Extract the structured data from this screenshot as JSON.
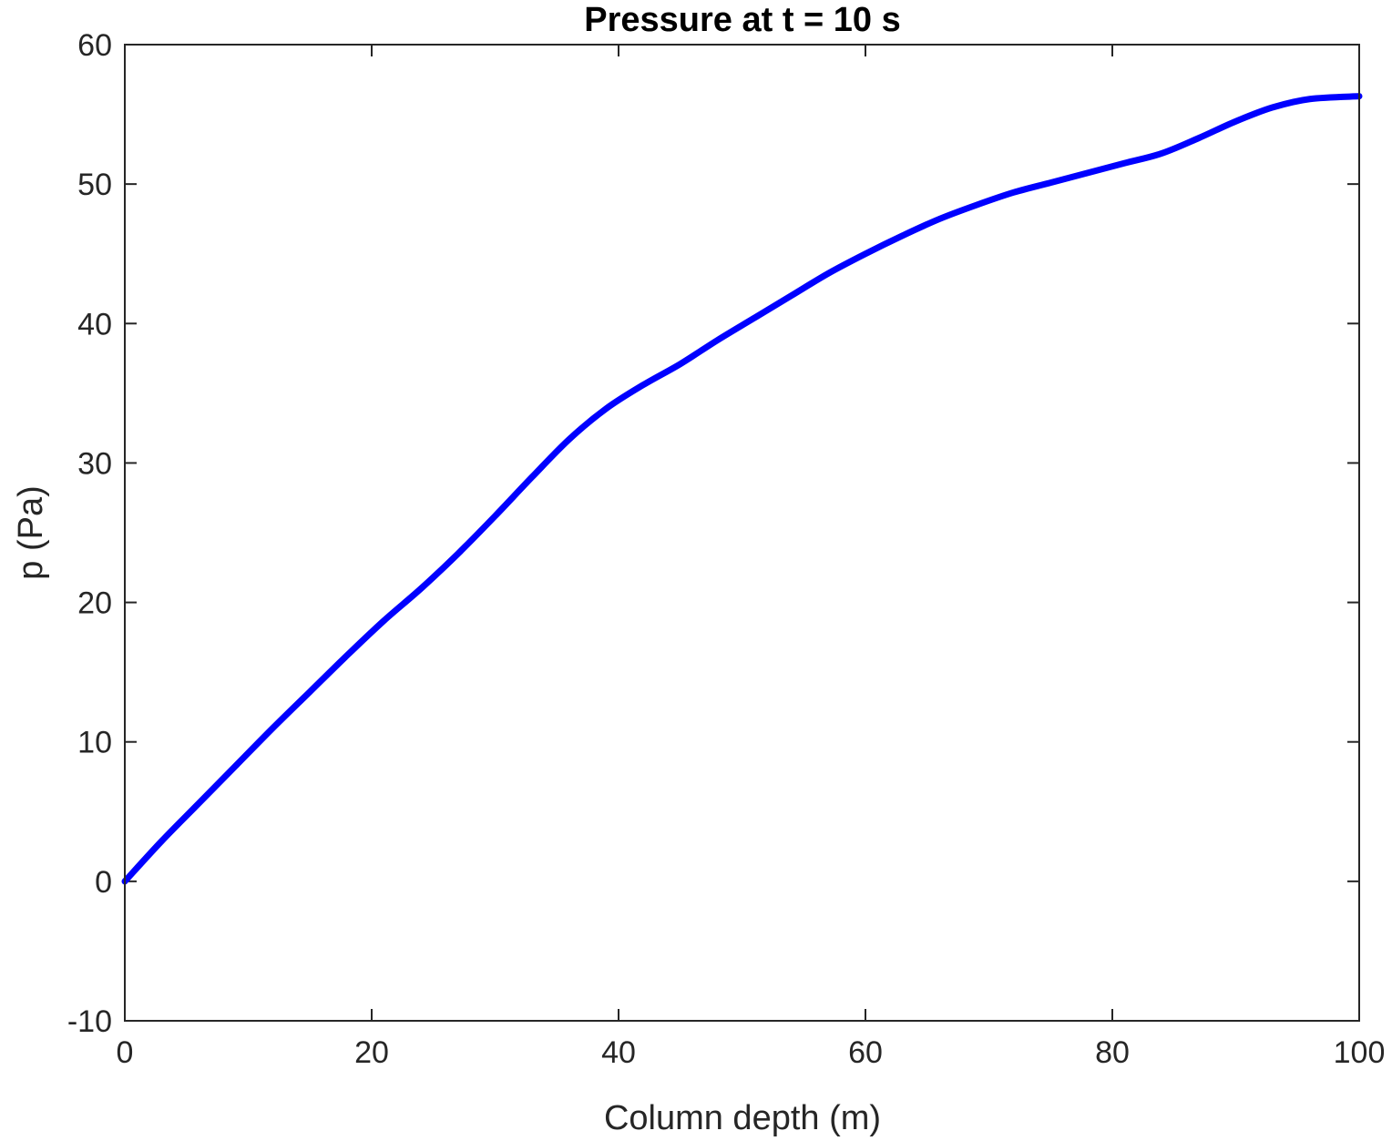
{
  "chart_data": {
    "type": "line",
    "title": "Pressure at t = 10 s",
    "xlabel": "Column depth (m)",
    "ylabel": "p (Pa)",
    "xlim": [
      0,
      100
    ],
    "ylim": [
      -10,
      60
    ],
    "xticks": [
      0,
      20,
      40,
      60,
      80,
      100
    ],
    "yticks": [
      -10,
      0,
      10,
      20,
      30,
      40,
      50,
      60
    ],
    "grid": false,
    "series": [
      {
        "color": "#0000ff",
        "x": [
          0,
          3,
          6,
          9,
          12,
          15,
          18,
          21,
          24,
          27,
          30,
          33,
          36,
          39,
          42,
          45,
          48,
          51,
          54,
          57,
          60,
          63,
          66,
          69,
          72,
          75,
          78,
          81,
          84,
          87,
          90,
          93,
          96,
          100
        ],
        "y": [
          0,
          2.9,
          5.6,
          8.3,
          11.0,
          13.6,
          16.2,
          18.7,
          21.0,
          23.5,
          26.2,
          29.0,
          31.7,
          33.9,
          35.6,
          37.1,
          38.8,
          40.4,
          42.0,
          43.6,
          45.0,
          46.3,
          47.5,
          48.5,
          49.4,
          50.1,
          50.8,
          51.5,
          52.2,
          53.3,
          54.5,
          55.5,
          56.1,
          56.3
        ]
      }
    ]
  }
}
